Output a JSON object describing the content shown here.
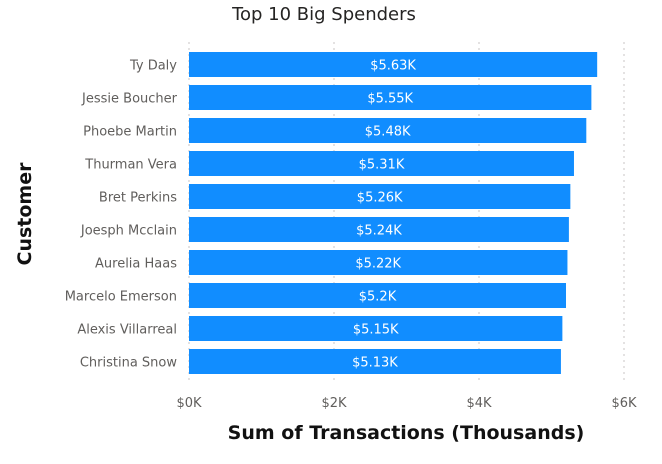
{
  "chart_data": {
    "type": "bar",
    "orientation": "horizontal",
    "title": "Top 10 Big Spenders",
    "xlabel": "Sum of Transactions (Thousands)",
    "ylabel": "Customer",
    "categories": [
      "Ty Daly",
      "Jessie Boucher",
      "Phoebe Martin",
      "Thurman Vera",
      "Bret Perkins",
      "Joesph Mcclain",
      "Aurelia Haas",
      "Marcelo Emerson",
      "Alexis Villarreal",
      "Christina Snow"
    ],
    "values": [
      5630,
      5550,
      5480,
      5310,
      5260,
      5240,
      5220,
      5200,
      5150,
      5130
    ],
    "data_labels": [
      "$5.63K",
      "$5.55K",
      "$5.48K",
      "$5.31K",
      "$5.26K",
      "$5.24K",
      "$5.22K",
      "$5.2K",
      "$5.15K",
      "$5.13K"
    ],
    "xlim": [
      0,
      6000
    ],
    "xticks": [
      0,
      2000,
      4000,
      6000
    ],
    "xtick_labels": [
      "$0K",
      "$2K",
      "$4K",
      "$6K"
    ],
    "grid": true,
    "bar_color": "#118DFF"
  }
}
